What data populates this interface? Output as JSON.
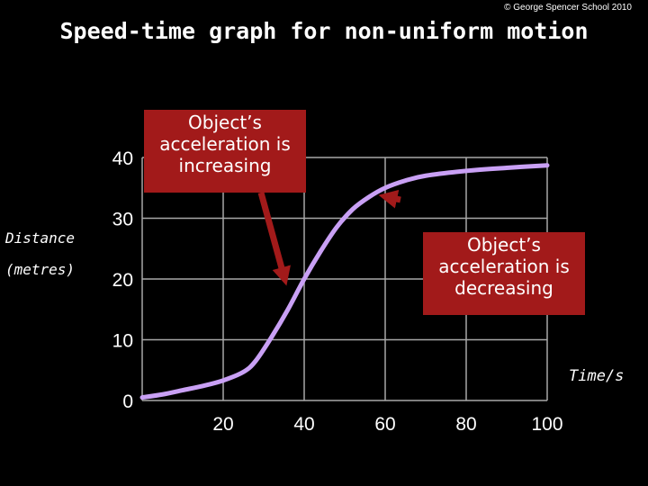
{
  "copyright": "© George Spencer School 2010",
  "chart_data": {
    "type": "line",
    "title": "Speed-time graph for non-uniform motion",
    "ylabel_line1": "Distance",
    "ylabel_line2": "(metres)",
    "xlabel": "Time/s",
    "xlim": [
      0,
      100
    ],
    "ylim": [
      0,
      40
    ],
    "x_ticks": [
      20,
      40,
      60,
      80,
      100
    ],
    "y_ticks": [
      0,
      10,
      20,
      30,
      40
    ],
    "grid": true,
    "line_color": "#c9a0f5",
    "series": [
      {
        "x": [
          0,
          5,
          10,
          15,
          20,
          25,
          28,
          32,
          36,
          40,
          44,
          48,
          52,
          56,
          60,
          65,
          70,
          80,
          90,
          100
        ],
        "y": [
          0.5,
          1.0,
          1.7,
          2.4,
          3.3,
          4.7,
          6.5,
          10.5,
          15.0,
          20.0,
          24.5,
          28.5,
          31.5,
          33.5,
          35.0,
          36.2,
          37.0,
          37.8,
          38.3,
          38.7
        ]
      }
    ]
  },
  "annotations": [
    {
      "text": "Object’s acceleration is increasing",
      "color": "#a21a1a",
      "point_x": 36,
      "point_y": 18
    },
    {
      "text": "Object’s acceleration is decreasing",
      "color": "#a21a1a",
      "point_x": 57,
      "point_y": 34
    }
  ]
}
